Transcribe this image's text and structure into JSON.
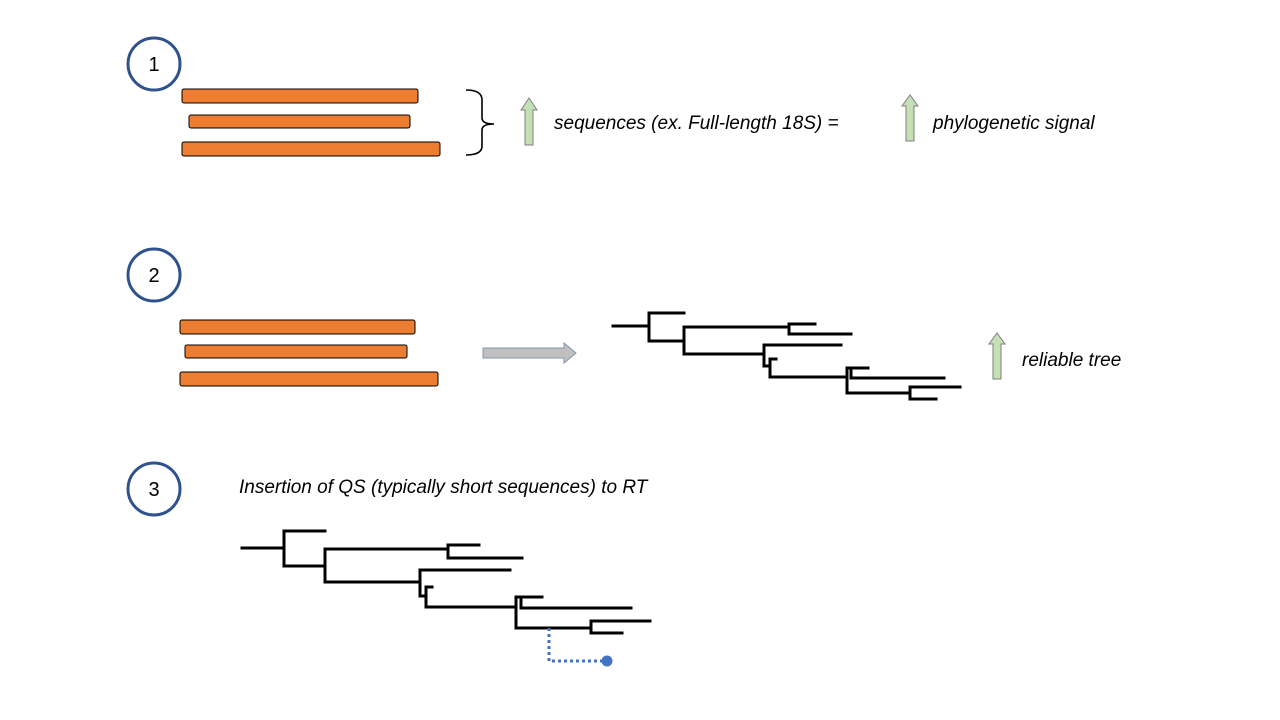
{
  "steps": [
    {
      "number": "1",
      "text_a": "sequences (ex. Full-length 18S) =",
      "text_b": "phylogenetic signal"
    },
    {
      "number": "2",
      "text_a": "reliable tree"
    },
    {
      "number": "3",
      "text_a": "Insertion of QS (typically short sequences) to RT"
    }
  ],
  "colors": {
    "circle_stroke": "#2f528f",
    "sequence_bar": "#ed7d31",
    "up_arrow_fill": "#c5e0b4",
    "up_arrow_stroke": "#7f7f7f",
    "right_arrow_fill": "#c0c0c0",
    "right_arrow_stroke": "#8497b0",
    "tree_line": "#000000",
    "query_line": "#4472c4"
  },
  "icons": {
    "increase_arrow": "up-arrow-icon",
    "process_arrow": "right-arrow-icon"
  }
}
